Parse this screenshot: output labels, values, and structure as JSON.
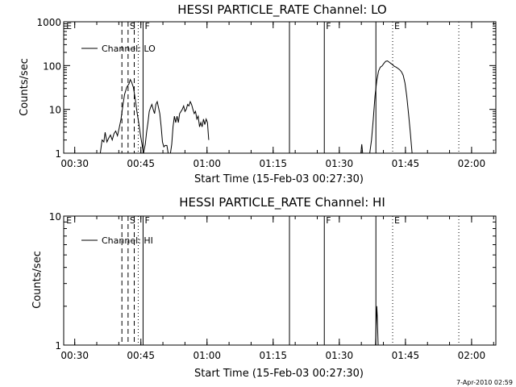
{
  "timestamp": "7-Apr-2010 02:59",
  "chart_data": [
    {
      "type": "line",
      "title": "HESSI PARTICLE_RATE Channel: LO",
      "xlabel": "Start Time (15-Feb-03 00:27:30)",
      "ylabel": "Counts/sec",
      "yscale": "log",
      "x_unit": "minutes since 00:27:30",
      "xlim": [
        0,
        98
      ],
      "ylim": [
        1,
        1000
      ],
      "x_ticks": [
        {
          "x": 2.5,
          "label": "00:30"
        },
        {
          "x": 17.5,
          "label": "00:45"
        },
        {
          "x": 32.5,
          "label": "01:00"
        },
        {
          "x": 47.5,
          "label": "01:15"
        },
        {
          "x": 62.5,
          "label": "01:30"
        },
        {
          "x": 77.5,
          "label": "01:45"
        },
        {
          "x": 92.5,
          "label": "02:00"
        }
      ],
      "y_ticks": [
        {
          "y": 1,
          "label": "1"
        },
        {
          "y": 10,
          "label": "10"
        },
        {
          "y": 100,
          "label": "100"
        },
        {
          "y": 1000,
          "label": "1000"
        }
      ],
      "legend": "Channel: LO",
      "legend_placement": "top-left",
      "markers": [
        {
          "x": 0.2,
          "label": "E",
          "style": "none"
        },
        {
          "x": 13.2,
          "label": "",
          "style": "dashed"
        },
        {
          "x": 14.6,
          "label": "S",
          "style": "dashed"
        },
        {
          "x": 16.0,
          "label": "",
          "style": "dashed"
        },
        {
          "x": 16.9,
          "label": "",
          "style": "dotted"
        },
        {
          "x": 18.0,
          "label": "F",
          "style": "solid"
        },
        {
          "x": 51.2,
          "label": "",
          "style": "solid"
        },
        {
          "x": 59.1,
          "label": "F",
          "style": "solid"
        },
        {
          "x": 70.8,
          "label": "",
          "style": "solid"
        },
        {
          "x": 74.6,
          "label": "E",
          "style": "dotted"
        },
        {
          "x": 89.6,
          "label": "",
          "style": "dotted"
        }
      ],
      "series": [
        {
          "name": "Channel: LO",
          "segments": [
            [
              [
                8.3,
                1
              ],
              [
                8.7,
                2
              ],
              [
                9.1,
                1.8
              ],
              [
                9.4,
                3
              ],
              [
                9.8,
                1.8
              ],
              [
                10.2,
                2.2
              ],
              [
                10.6,
                2.6
              ],
              [
                11.0,
                2.0
              ],
              [
                11.4,
                2.8
              ],
              [
                11.8,
                3.2
              ],
              [
                12.2,
                2.5
              ],
              [
                12.6,
                3.8
              ],
              [
                13.0,
                6
              ],
              [
                13.4,
                12
              ],
              [
                13.8,
                22
              ],
              [
                14.3,
                32
              ],
              [
                14.8,
                38
              ],
              [
                15.1,
                48
              ],
              [
                15.4,
                42
              ],
              [
                15.8,
                32
              ],
              [
                16.2,
                18
              ],
              [
                16.6,
                9
              ],
              [
                17.0,
                5
              ],
              [
                17.4,
                2.6
              ],
              [
                17.8,
                1.5
              ],
              [
                18.1,
                1
              ],
              [
                18.5,
                1.6
              ],
              [
                18.8,
                3
              ],
              [
                19.1,
                5
              ],
              [
                19.4,
                9
              ],
              [
                19.7,
                11
              ],
              [
                20.0,
                13
              ],
              [
                20.3,
                10
              ],
              [
                20.6,
                8
              ],
              [
                20.9,
                13
              ],
              [
                21.2,
                15
              ],
              [
                21.5,
                11
              ],
              [
                21.8,
                8
              ],
              [
                22.1,
                4
              ],
              [
                22.4,
                1.8
              ],
              [
                22.7,
                1.4
              ],
              [
                23.0,
                1.5
              ],
              [
                23.4,
                1.5
              ],
              [
                23.7,
                1
              ]
            ],
            [
              [
                24.2,
                1
              ],
              [
                24.5,
                1.6
              ],
              [
                24.8,
                4
              ],
              [
                25.1,
                7
              ],
              [
                25.4,
                5
              ],
              [
                25.7,
                7
              ],
              [
                26.0,
                5
              ],
              [
                26.3,
                8
              ],
              [
                26.6,
                9
              ],
              [
                26.9,
                10
              ],
              [
                27.2,
                12
              ],
              [
                27.5,
                9
              ],
              [
                27.8,
                10
              ],
              [
                28.1,
                13
              ],
              [
                28.4,
                12
              ],
              [
                28.7,
                15
              ],
              [
                29.0,
                13
              ],
              [
                29.3,
                10
              ],
              [
                29.6,
                8
              ],
              [
                29.9,
                9
              ],
              [
                30.2,
                6
              ],
              [
                30.5,
                7
              ],
              [
                30.8,
                4
              ],
              [
                31.1,
                5
              ],
              [
                31.4,
                4
              ],
              [
                31.7,
                6
              ],
              [
                32.0,
                4.5
              ],
              [
                32.3,
                6
              ],
              [
                32.6,
                5
              ],
              [
                32.9,
                2
              ]
            ],
            [
              [
                67.4,
                1
              ],
              [
                67.6,
                1.6
              ],
              [
                67.8,
                1
              ]
            ],
            [
              [
                69.4,
                1
              ],
              [
                69.8,
                2
              ],
              [
                70.2,
                6
              ],
              [
                70.6,
                20
              ],
              [
                71.0,
                45
              ],
              [
                71.4,
                75
              ],
              [
                71.8,
                92
              ],
              [
                72.2,
                98
              ],
              [
                72.6,
                112
              ],
              [
                73.0,
                125
              ],
              [
                73.4,
                128
              ],
              [
                73.8,
                120
              ],
              [
                74.2,
                112
              ],
              [
                74.6,
                104
              ],
              [
                75.0,
                96
              ],
              [
                75.4,
                92
              ],
              [
                75.8,
                86
              ],
              [
                76.2,
                80
              ],
              [
                76.6,
                72
              ],
              [
                77.0,
                60
              ],
              [
                77.4,
                40
              ],
              [
                77.8,
                20
              ],
              [
                78.2,
                8
              ],
              [
                78.6,
                3
              ],
              [
                79.0,
                1
              ]
            ]
          ]
        }
      ]
    },
    {
      "type": "line",
      "title": "HESSI PARTICLE_RATE Channel: HI",
      "xlabel": "Start Time (15-Feb-03 00:27:30)",
      "ylabel": "Counts/sec",
      "yscale": "log",
      "x_unit": "minutes since 00:27:30",
      "xlim": [
        0,
        98
      ],
      "ylim": [
        1,
        10
      ],
      "x_ticks": [
        {
          "x": 2.5,
          "label": "00:30"
        },
        {
          "x": 17.5,
          "label": "00:45"
        },
        {
          "x": 32.5,
          "label": "01:00"
        },
        {
          "x": 47.5,
          "label": "01:15"
        },
        {
          "x": 62.5,
          "label": "01:30"
        },
        {
          "x": 77.5,
          "label": "01:45"
        },
        {
          "x": 92.5,
          "label": "02:00"
        }
      ],
      "y_ticks": [
        {
          "y": 1,
          "label": "1"
        },
        {
          "y": 10,
          "label": "10"
        }
      ],
      "legend": "Channel: HI",
      "legend_placement": "top-left",
      "markers": [
        {
          "x": 0.2,
          "label": "E",
          "style": "none"
        },
        {
          "x": 13.2,
          "label": "",
          "style": "dashed"
        },
        {
          "x": 14.6,
          "label": "S",
          "style": "dashed"
        },
        {
          "x": 16.0,
          "label": "",
          "style": "dashed"
        },
        {
          "x": 16.9,
          "label": "",
          "style": "dotted"
        },
        {
          "x": 18.0,
          "label": "F",
          "style": "solid"
        },
        {
          "x": 51.2,
          "label": "",
          "style": "solid"
        },
        {
          "x": 59.1,
          "label": "F",
          "style": "solid"
        },
        {
          "x": 70.8,
          "label": "",
          "style": "solid"
        },
        {
          "x": 74.6,
          "label": "E",
          "style": "dotted"
        },
        {
          "x": 89.6,
          "label": "",
          "style": "dotted"
        }
      ],
      "series": [
        {
          "name": "Channel: HI",
          "segments": [
            [
              [
                70.7,
                1
              ],
              [
                70.9,
                1.6
              ],
              [
                71.0,
                2
              ],
              [
                71.1,
                1.7
              ],
              [
                71.3,
                1
              ]
            ]
          ]
        }
      ]
    }
  ]
}
